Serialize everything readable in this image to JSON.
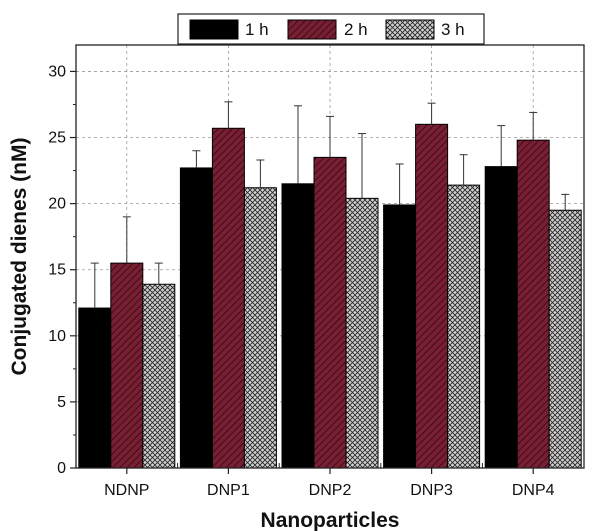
{
  "chart_data": {
    "type": "bar",
    "title": "",
    "xlabel": "Nanoparticles",
    "ylabel": "Conjugated dienes (nM)",
    "categories": [
      "NDNP",
      "DNP1",
      "DNP2",
      "DNP3",
      "DNP4"
    ],
    "ylim": [
      0,
      32
    ],
    "yticks": [
      0,
      5,
      10,
      15,
      20,
      25,
      30
    ],
    "grid": true,
    "legend_position": "top-center",
    "series": [
      {
        "name": "1 h",
        "values": [
          12.1,
          22.7,
          21.5,
          19.9,
          22.8
        ],
        "errors": [
          3.4,
          1.3,
          5.9,
          3.1,
          3.1
        ],
        "color": "#000000",
        "pattern": "solid"
      },
      {
        "name": "2 h",
        "values": [
          15.5,
          25.7,
          23.5,
          26.0,
          24.8
        ],
        "errors": [
          3.5,
          2.0,
          3.1,
          1.6,
          2.1
        ],
        "color": "#7a1f33",
        "pattern": "diagonal-hatch"
      },
      {
        "name": "3 h",
        "values": [
          13.9,
          21.2,
          20.4,
          21.4,
          19.5
        ],
        "errors": [
          1.6,
          2.1,
          4.9,
          2.3,
          1.2
        ],
        "color": "#8a8a8a",
        "pattern": "crosshatch"
      }
    ]
  }
}
